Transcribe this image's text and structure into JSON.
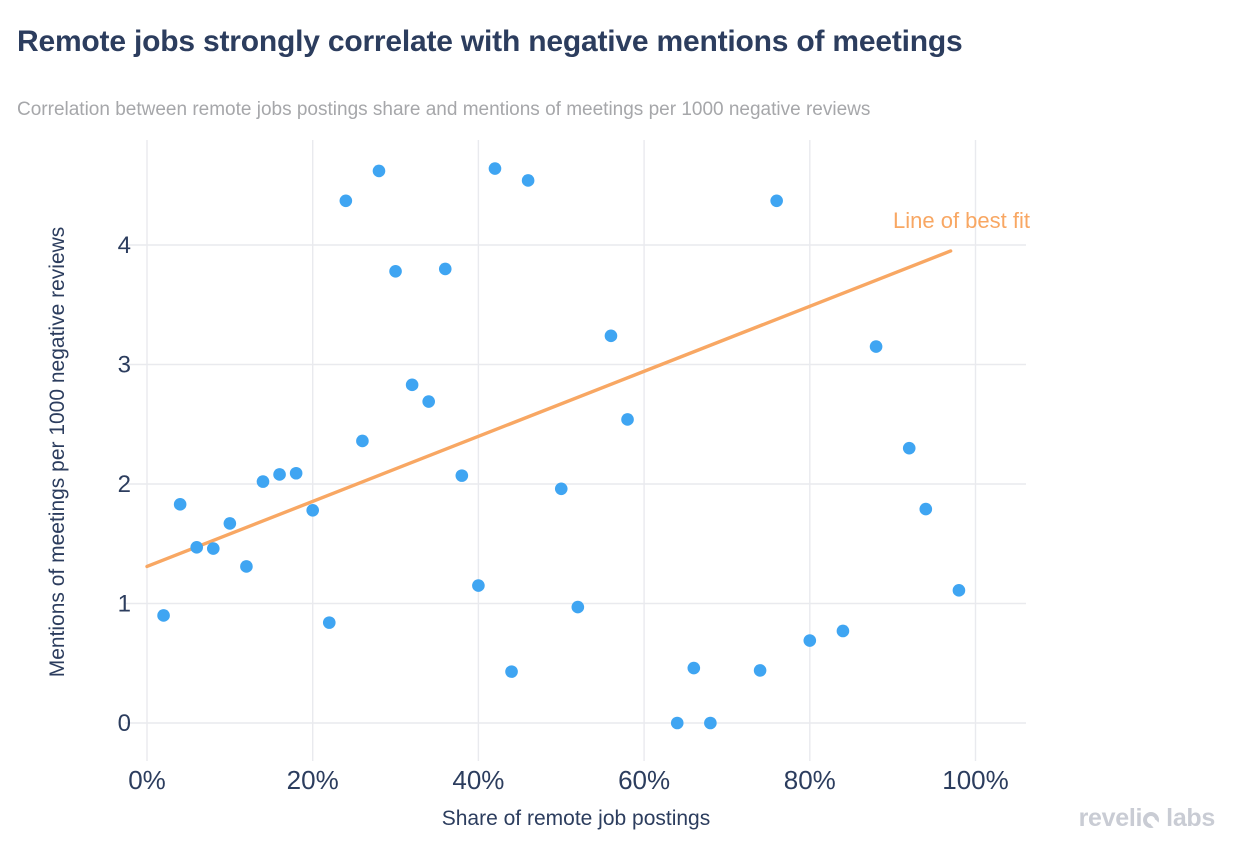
{
  "header": {
    "title": "Remote jobs strongly correlate with negative mentions of meetings",
    "subtitle": "Correlation between remote jobs postings share and mentions of meetings per 1000 negative reviews"
  },
  "chart_data": {
    "type": "scatter",
    "title": "Remote jobs strongly correlate with negative mentions of meetings",
    "subtitle": "Correlation between remote jobs postings share and mentions of meetings per 1000 negative reviews",
    "xlabel": "Share of remote job postings",
    "ylabel": "Mentions of meetings per 1000 negative reviews",
    "x_unit": "percent",
    "xlim": [
      -0.85,
      106.1
    ],
    "ylim": [
      -0.27,
      4.88
    ],
    "grid": true,
    "legend_position": "none",
    "x_ticks": {
      "values": [
        0,
        20,
        40,
        60,
        80,
        100
      ],
      "labels": [
        "0%",
        "20%",
        "40%",
        "60%",
        "80%",
        "100%"
      ]
    },
    "y_ticks": {
      "values": [
        0,
        1,
        2,
        3,
        4
      ],
      "labels": [
        "0",
        "1",
        "2",
        "3",
        "4"
      ]
    },
    "series": [
      {
        "name": "scatter-points",
        "points": [
          [
            2,
            0.9
          ],
          [
            4,
            1.83
          ],
          [
            6,
            1.47
          ],
          [
            8,
            1.46
          ],
          [
            10,
            1.67
          ],
          [
            12,
            1.31
          ],
          [
            14,
            2.02
          ],
          [
            16,
            2.08
          ],
          [
            18,
            2.09
          ],
          [
            20,
            1.78
          ],
          [
            22,
            0.84
          ],
          [
            24,
            4.37
          ],
          [
            26,
            2.36
          ],
          [
            28,
            4.62
          ],
          [
            30,
            3.78
          ],
          [
            32,
            2.83
          ],
          [
            34,
            2.69
          ],
          [
            36,
            3.8
          ],
          [
            38,
            2.07
          ],
          [
            40,
            1.15
          ],
          [
            42,
            4.64
          ],
          [
            44,
            0.43
          ],
          [
            46,
            4.54
          ],
          [
            50,
            1.96
          ],
          [
            52,
            0.97
          ],
          [
            56,
            3.24
          ],
          [
            58,
            2.54
          ],
          [
            64,
            0.0
          ],
          [
            66,
            0.46
          ],
          [
            68,
            0.0
          ],
          [
            74,
            0.44
          ],
          [
            76,
            4.37
          ],
          [
            80,
            0.69
          ],
          [
            84,
            0.77
          ],
          [
            88,
            3.15
          ],
          [
            92,
            2.3
          ],
          [
            94,
            1.79
          ],
          [
            98,
            1.11
          ]
        ]
      }
    ],
    "trendline": {
      "label": "Line of best fit",
      "x_start": 0,
      "y_start": 1.31,
      "x_end": 97,
      "y_end": 3.95,
      "color": "#f8a763"
    },
    "colors": {
      "point": "#3fa5f2",
      "trend": "#f8a763",
      "grid": "#e9eaee",
      "axis_text": "#2c3d5e",
      "title": "#2c3d5e",
      "subtitle": "#a6a7aa",
      "logo": "#c9ccd4",
      "background": "#ffffff"
    }
  },
  "footer": {
    "logo_part1": "reveli",
    "logo_part2": "labs"
  }
}
